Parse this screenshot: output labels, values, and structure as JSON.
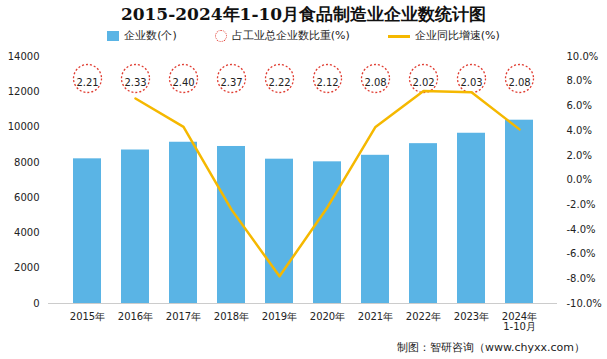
{
  "chart_data": {
    "type": "bar",
    "title": "2015-2024年1-10月食品制造业企业数统计图",
    "categories": [
      "2015年",
      "2016年",
      "2017年",
      "2018年",
      "2019年",
      "2020年",
      "2021年",
      "2022年",
      "2023年",
      "2024年\n1-10月"
    ],
    "series": [
      {
        "name": "企业数(个)",
        "type": "bar",
        "color": "#5ab4e5",
        "values": [
          8200,
          8700,
          9140,
          8900,
          8180,
          8030,
          8400,
          9060,
          9650,
          10390
        ]
      },
      {
        "name": "占工业总企业数比重(%)",
        "type": "scatter",
        "marker": "circle",
        "line_style": "dotted",
        "color": "#e03c31",
        "data_labels": true,
        "values": [
          2.21,
          2.33,
          2.4,
          2.37,
          2.22,
          2.12,
          2.08,
          2.02,
          2.03,
          2.08
        ],
        "value_labels": [
          "2.21",
          "2.33",
          "2.40",
          "2.37",
          "2.22",
          "2.12",
          "2.08",
          "2.02",
          "2.03",
          "2.08"
        ]
      },
      {
        "name": "企业同比增速(%)",
        "type": "line",
        "axis": "y2",
        "color": "#f5b800",
        "values": [
          null,
          6.6,
          4.3,
          -2.4,
          -7.8,
          -2.2,
          4.3,
          7.2,
          7.1,
          4.1
        ]
      }
    ],
    "ylim": [
      0,
      14000
    ],
    "yticks": [
      0,
      2000,
      4000,
      6000,
      8000,
      10000,
      12000,
      14000
    ],
    "y2lim": [
      -10,
      10
    ],
    "y2ticks": [
      {
        "value": -10,
        "label": "-10.0%"
      },
      {
        "value": -8,
        "label": "-8.0%"
      },
      {
        "value": -6,
        "label": "-6.0%"
      },
      {
        "value": -4,
        "label": "-4.0%"
      },
      {
        "value": -2,
        "label": "-2.0%"
      },
      {
        "value": 0,
        "label": "0.0%"
      },
      {
        "value": 2,
        "label": "2.0%"
      },
      {
        "value": 4,
        "label": "4.0%"
      },
      {
        "value": 6,
        "label": "6.0%"
      },
      {
        "value": 8,
        "label": "8.0%"
      },
      {
        "value": 10,
        "label": "10.0%"
      }
    ],
    "grid": false,
    "legend": "top",
    "caption": "制图：智研咨询（www.chyxx.com）"
  }
}
